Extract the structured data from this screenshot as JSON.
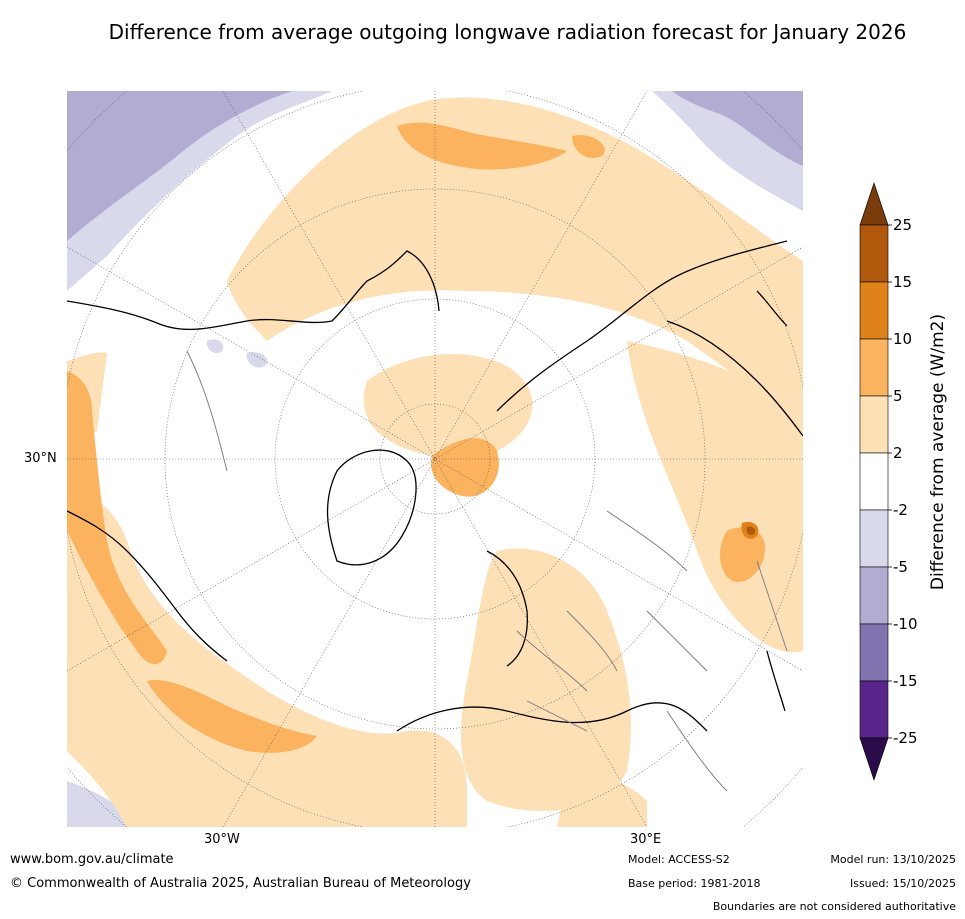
{
  "title": "Difference from average outgoing longwave radiation forecast for January 2026",
  "map": {
    "projection": "north-polar-stereographic",
    "lat_label": "30°N",
    "lon_labels": {
      "west": "30°W",
      "east": "30°E"
    }
  },
  "colorbar": {
    "label": "Difference from average (W/m2)",
    "ticks": [
      "25",
      "15",
      "10",
      "5",
      "2",
      "-2",
      "-5",
      "-10",
      "-15",
      "-25"
    ],
    "bands": [
      {
        "range": "> 25",
        "color": "#7a3c0a"
      },
      {
        "range": "15 to 25",
        "color": "#b0580c"
      },
      {
        "range": "10 to 15",
        "color": "#e0821a"
      },
      {
        "range": "5 to 10",
        "color": "#fbb35f"
      },
      {
        "range": "2 to 5",
        "color": "#fde0b5"
      },
      {
        "range": "-2 to 2",
        "color": "#ffffff"
      },
      {
        "range": "-5 to -2",
        "color": "#d9d9ec"
      },
      {
        "range": "-10 to -5",
        "color": "#b2abd2"
      },
      {
        "range": "-15 to -10",
        "color": "#8173b0"
      },
      {
        "range": "-25 to -15",
        "color": "#58268a"
      },
      {
        "range": "< -25",
        "color": "#2d0a48"
      }
    ]
  },
  "footer": {
    "website": "www.bom.gov.au/climate",
    "copyright": "© Commonwealth of Australia 2025, Australian Bureau of Meteorology",
    "model": "Model: ACCESS-S2",
    "base_period": "Base period: 1981-2018",
    "model_run": "Model run: 13/10/2025",
    "issued": "Issued: 15/10/2025",
    "disclaimer": "Boundaries are not considered authoritative"
  }
}
